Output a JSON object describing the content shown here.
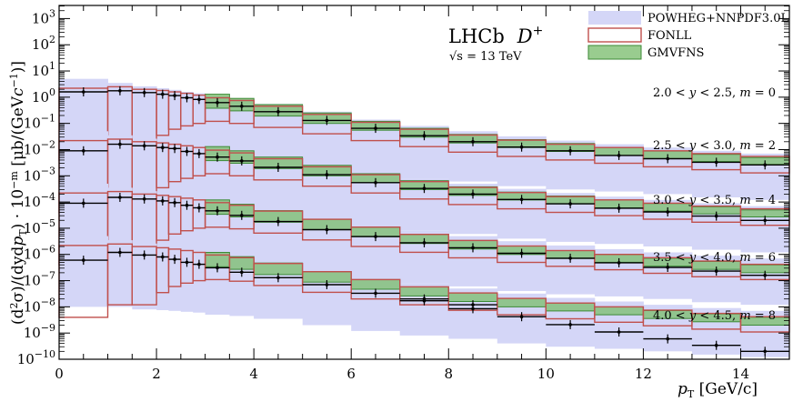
{
  "chart_data": {
    "type": "step-histogram",
    "experiment": "LHCb",
    "particle": "D",
    "particle_charge": "+",
    "energy_label": "√s = 13 TeV",
    "xlabel": "pT [GeV/c]",
    "xlabel_parts": {
      "main": "p",
      "sub": "T",
      "unit": " [GeV/c]"
    },
    "ylabel_parts": {
      "a": "(d",
      "sup2": "2",
      "b": "σ)/(dyd",
      "p": "p",
      "subT": "T",
      "c": ") · 10",
      "supm": "−m",
      "d": " [μb/(GeV",
      "e": "c",
      "supm1": "−1",
      "f": ")]"
    },
    "xlim": [
      0,
      15
    ],
    "ylim_log10": [
      -10,
      3.5
    ],
    "y_scale": "log",
    "xticks": [
      0,
      2,
      4,
      6,
      8,
      10,
      12,
      14
    ],
    "ytick_exponents": [
      3,
      2,
      1,
      0,
      -1,
      -2,
      -3,
      -4,
      -5,
      -6,
      -7,
      -8,
      -9,
      -10
    ],
    "ytick_labels": [
      "10^3",
      "10^2",
      "10^1",
      "10^0",
      "10^−1",
      "10^−2",
      "10^−3",
      "10^−4",
      "10^−5",
      "10^−6",
      "10^−7",
      "10^−8",
      "10^−9",
      "10^−10"
    ],
    "legend": [
      {
        "name": "POWHEG+NNPDF3.0L",
        "color": "#d4d6f7",
        "style": "fill"
      },
      {
        "name": "FONLL",
        "color": "#c0504d",
        "style": "outline"
      },
      {
        "name": "GMVFNS",
        "color": "#7fbf73",
        "style": "fill-outline"
      }
    ],
    "legend_position": "top-right",
    "colors": {
      "powheg": "#d4d6f7",
      "fonll": "#c0504d",
      "gmvfns_fill": "#7fbf73",
      "gmvfns_edge": "#3c8a36",
      "data": "#000000"
    },
    "bin_edges": [
      0,
      1,
      1.5,
      2,
      2.25,
      2.5,
      2.75,
      3,
      3.5,
      4,
      5,
      6,
      7,
      8,
      9,
      10,
      11,
      12,
      13,
      14,
      15
    ],
    "series": [
      {
        "name": "2.0 < y < 2.5, m = 0",
        "label_parts": {
          "a": "2.0 < ",
          "y": "y",
          "b": " < 2.5, ",
          "m": "m",
          "c": " = 0"
        },
        "scale_exp": 0,
        "data": {
          "x": [
            0.5,
            1.25,
            1.75,
            2.125,
            2.375,
            2.625,
            2.875,
            3.25,
            3.75,
            4.5,
            5.5,
            6.5,
            7.5,
            8.5,
            9.5,
            10.5,
            11.5,
            12.5,
            13.5,
            14.5
          ],
          "y": [
            1.6,
            1.75,
            1.5,
            1.3,
            1.15,
            0.95,
            0.82,
            0.62,
            0.45,
            0.28,
            0.13,
            0.065,
            0.034,
            0.02,
            0.0125,
            0.009,
            0.006,
            0.0045,
            0.0033,
            0.0026
          ]
        },
        "powheg": {
          "lo": [
            0.01,
            0.01,
            0.008,
            0.0075,
            0.007,
            0.0065,
            0.006,
            0.005,
            0.0045,
            0.0035,
            0.002,
            0.0012,
            0.0008,
            0.0006,
            0.0004,
            0.0003,
            0.00025,
            0.0002,
            0.00015,
            0.00012
          ],
          "hi": [
            5,
            3.5,
            2.6,
            2.2,
            1.9,
            1.6,
            1.4,
            1.1,
            0.85,
            0.55,
            0.28,
            0.14,
            0.08,
            0.05,
            0.032,
            0.022,
            0.016,
            0.012,
            0.009,
            0.007
          ]
        },
        "fonll": {
          "lo": [
            0.004,
            0.012,
            0.012,
            0.035,
            0.06,
            0.08,
            0.1,
            0.12,
            0.1,
            0.07,
            0.04,
            0.022,
            0.013,
            0.008,
            0.0055,
            0.004,
            0.003,
            0.0022,
            0.0017,
            0.0013
          ],
          "hi": [
            2.2,
            2.5,
            2.0,
            1.8,
            1.6,
            1.4,
            1.2,
            0.95,
            0.75,
            0.45,
            0.22,
            0.11,
            0.06,
            0.036,
            0.023,
            0.016,
            0.012,
            0.009,
            0.007,
            0.0055
          ]
        },
        "gmvfns": {
          "lo": [
            null,
            null,
            null,
            null,
            null,
            null,
            null,
            0.38,
            0.3,
            0.19,
            0.1,
            0.055,
            0.03,
            0.018,
            0.012,
            0.0085,
            0.006,
            0.0045,
            0.0035,
            0.0027
          ],
          "hi": [
            null,
            null,
            null,
            null,
            null,
            null,
            null,
            1.3,
            0.9,
            0.52,
            0.25,
            0.12,
            0.065,
            0.038,
            0.024,
            0.017,
            0.012,
            0.0088,
            0.0066,
            0.005
          ]
        }
      },
      {
        "name": "2.5 < y < 3.0, m = 2",
        "label_parts": {
          "a": "2.5 < ",
          "y": "y",
          "b": " < 3.0, ",
          "m": "m",
          "c": " = 2"
        },
        "scale_exp": -2,
        "data": {
          "x": [
            0.5,
            1.25,
            1.75,
            2.125,
            2.375,
            2.625,
            2.875,
            3.25,
            3.75,
            4.5,
            5.5,
            6.5,
            7.5,
            8.5,
            9.5,
            10.5,
            11.5,
            12.5,
            13.5,
            14.5
          ],
          "y": [
            0.009,
            0.016,
            0.014,
            0.012,
            0.011,
            0.0085,
            0.007,
            0.0052,
            0.0037,
            0.0021,
            0.0011,
            0.00055,
            0.00033,
            0.0002,
            0.000125,
            8.5e-05,
            5.8e-05,
            4.2e-05,
            2.9e-05,
            2e-05
          ]
        },
        "powheg": {
          "lo": [
            0.0001,
            0.0001,
            8e-05,
            7.5e-05,
            7e-05,
            6.5e-05,
            6e-05,
            5e-05,
            4.5e-05,
            3.5e-05,
            2e-05,
            1.2e-05,
            8e-06,
            6e-06,
            4e-06,
            3e-06,
            2.5e-06,
            2e-06,
            1.5e-06,
            1.2e-06
          ],
          "hi": [
            0.05,
            0.035,
            0.026,
            0.022,
            0.019,
            0.016,
            0.014,
            0.011,
            0.0085,
            0.0055,
            0.0028,
            0.0014,
            0.0008,
            0.0005,
            0.00032,
            0.00022,
            0.00016,
            0.00012,
            9e-05,
            7e-05
          ]
        },
        "fonll": {
          "lo": [
            4e-05,
            0.00012,
            0.00012,
            0.00035,
            0.0006,
            0.0008,
            0.001,
            0.0012,
            0.001,
            0.0007,
            0.0004,
            0.00022,
            0.00013,
            8e-05,
            5.5e-05,
            4e-05,
            3e-05,
            2.2e-05,
            1.7e-05,
            1.3e-05
          ],
          "hi": [
            0.022,
            0.025,
            0.02,
            0.018,
            0.016,
            0.014,
            0.012,
            0.0095,
            0.0075,
            0.0045,
            0.0022,
            0.0011,
            0.0006,
            0.00036,
            0.00023,
            0.00016,
            0.00012,
            9e-05,
            7e-05,
            5.5e-05
          ]
        },
        "gmvfns": {
          "lo": [
            null,
            null,
            null,
            null,
            null,
            null,
            null,
            0.0038,
            0.003,
            0.0019,
            0.001,
            0.00055,
            0.0003,
            0.00018,
            0.00012,
            8.5e-05,
            6e-05,
            4.5e-05,
            3.5e-05,
            2.7e-05
          ],
          "hi": [
            null,
            null,
            null,
            null,
            null,
            null,
            null,
            0.013,
            0.009,
            0.0052,
            0.0025,
            0.0012,
            0.00065,
            0.00038,
            0.00024,
            0.00017,
            0.00012,
            8.8e-05,
            6.6e-05,
            5e-05
          ]
        }
      },
      {
        "name": "3.0 < y < 3.5, m = 4",
        "label_parts": {
          "a": "3.0 < ",
          "y": "y",
          "b": " < 3.5, ",
          "m": "m",
          "c": " = 4"
        },
        "scale_exp": -4,
        "data": {
          "x": [
            0.5,
            1.25,
            1.75,
            2.125,
            2.375,
            2.625,
            2.875,
            3.25,
            3.75,
            4.5,
            5.5,
            6.5,
            7.5,
            8.5,
            9.5,
            10.5,
            11.5,
            12.5,
            13.5,
            14.5
          ],
          "y": [
            9e-05,
            0.00015,
            0.00013,
            0.00011,
            9.5e-05,
            7.5e-05,
            6e-05,
            4.6e-05,
            3.1e-05,
            1.8e-05,
            8.8e-06,
            4.8e-06,
            2.8e-06,
            1.8e-06,
            1.1e-06,
            7.2e-07,
            4.8e-07,
            3.2e-07,
            2.3e-07,
            1.6e-07
          ]
        },
        "powheg": {
          "lo": [
            1e-06,
            1e-06,
            8e-07,
            7.5e-07,
            7e-07,
            6.5e-07,
            6e-07,
            5e-07,
            4.5e-07,
            3.5e-07,
            2e-07,
            1.2e-07,
            8e-08,
            6e-08,
            4e-08,
            3e-08,
            2.5e-08,
            2e-08,
            1.5e-08,
            1.2e-08
          ],
          "hi": [
            0.0005,
            0.00035,
            0.00026,
            0.00022,
            0.00019,
            0.00016,
            0.00014,
            0.00011,
            8.5e-05,
            5.5e-05,
            2.8e-05,
            1.4e-05,
            8e-06,
            5e-06,
            3.2e-06,
            2.2e-06,
            1.6e-06,
            1.2e-06,
            9e-07,
            7e-07
          ]
        },
        "fonll": {
          "lo": [
            4e-07,
            1.2e-06,
            1.2e-06,
            3.5e-06,
            6e-06,
            8e-06,
            1e-05,
            1.1e-05,
            9.5e-06,
            6.5e-06,
            3.6e-06,
            2e-06,
            1.2e-06,
            7.4e-07,
            5e-07,
            3.5e-07,
            2.6e-07,
            1.9e-07,
            1.4e-07,
            1.1e-07
          ],
          "hi": [
            0.00022,
            0.00025,
            0.0002,
            0.00018,
            0.00016,
            0.00014,
            0.00012,
            9.5e-05,
            7.5e-05,
            4.5e-05,
            2.2e-05,
            1.1e-05,
            5.8e-06,
            3.4e-06,
            2.1e-06,
            1.4e-06,
            1e-06,
            7.5e-07,
            5.6e-07,
            4.2e-07
          ]
        },
        "gmvfns": {
          "lo": [
            null,
            null,
            null,
            null,
            null,
            null,
            null,
            3.4e-05,
            2.7e-05,
            1.7e-05,
            8.8e-06,
            4.7e-06,
            2.6e-06,
            1.6e-06,
            1e-06,
            7e-07,
            5e-07,
            3.6e-07,
            2.7e-07,
            2e-07
          ],
          "hi": [
            null,
            null,
            null,
            null,
            null,
            null,
            null,
            0.00012,
            8.2e-05,
            4.7e-05,
            2.2e-05,
            1.1e-05,
            5.8e-06,
            3.4e-06,
            2.1e-06,
            1.4e-06,
            1e-06,
            7.2e-07,
            5.4e-07,
            4e-07
          ]
        }
      },
      {
        "name": "3.5 < y < 4.0, m = 6",
        "label_parts": {
          "a": "3.5 < ",
          "y": "y",
          "b": " < 4.0, ",
          "m": "m",
          "c": " = 6"
        },
        "scale_exp": -6,
        "data": {
          "x": [
            0.5,
            1.25,
            1.75,
            2.125,
            2.375,
            2.625,
            2.875,
            3.25,
            3.75,
            4.5,
            5.5,
            6.5,
            7.5,
            8.5,
            9.5,
            10.5,
            11.5,
            12.5,
            13.5,
            14.5
          ],
          "y": [
            6e-07,
            1.2e-06,
            9.5e-07,
            8e-07,
            6.5e-07,
            5e-07,
            4.2e-07,
            3.1e-07,
            2.1e-07,
            1.3e-07,
            7e-08,
            3.3e-08,
            1.7e-08,
            8.5e-09,
            4.2e-09,
            2.1e-09,
            1.1e-09,
            6e-10,
            3.4e-10,
            2e-10
          ]
        },
        "powheg": {
          "lo": [
            1e-08,
            1e-08,
            8e-09,
            7.5e-09,
            7e-09,
            6.5e-09,
            6e-09,
            5e-09,
            4.5e-09,
            3.5e-09,
            2e-09,
            1.2e-09,
            8e-10,
            6e-10,
            4e-10,
            3e-10,
            2.5e-10,
            2e-10,
            1.5e-10,
            1.2e-10
          ],
          "hi": [
            5e-06,
            3.5e-06,
            2.6e-06,
            2.2e-06,
            1.9e-06,
            1.6e-06,
            1.4e-06,
            1.1e-06,
            8.5e-07,
            5.5e-07,
            2.8e-07,
            1.4e-07,
            8e-08,
            5e-08,
            3.2e-08,
            2.2e-08,
            1.6e-08,
            1.2e-08,
            9e-09,
            7e-09
          ]
        },
        "fonll": {
          "lo": [
            4e-09,
            1.2e-08,
            1.2e-08,
            3.5e-08,
            6e-08,
            8e-08,
            1e-07,
            1.1e-07,
            9.5e-08,
            6.5e-08,
            3.6e-08,
            2e-08,
            1.2e-08,
            7.4e-09,
            5e-09,
            3.5e-09,
            2.6e-09,
            1.9e-09,
            1.4e-09,
            1.1e-09
          ],
          "hi": [
            2.2e-06,
            2.5e-06,
            2e-06,
            1.8e-06,
            1.6e-06,
            1.4e-06,
            1.2e-06,
            9.5e-07,
            7.5e-07,
            4.5e-07,
            2.2e-07,
            1.1e-07,
            5.8e-08,
            3.4e-08,
            2.1e-08,
            1.4e-08,
            1e-08,
            7.5e-09,
            5.6e-09,
            4.2e-09
          ]
        },
        "gmvfns": {
          "lo": [
            null,
            null,
            null,
            null,
            null,
            null,
            null,
            3.4e-07,
            2.7e-07,
            1.7e-07,
            8.8e-08,
            4.7e-08,
            2.6e-08,
            1.6e-08,
            1e-08,
            7e-09,
            5e-09,
            3.6e-09,
            2.7e-09,
            2e-09
          ],
          "hi": [
            null,
            null,
            null,
            null,
            null,
            null,
            null,
            1.2e-06,
            8.2e-07,
            4.7e-07,
            2.2e-07,
            1.1e-07,
            5.8e-08,
            3.4e-08,
            2.1e-08,
            1.4e-08,
            1e-08,
            7.2e-09,
            5.4e-09,
            4e-09
          ]
        }
      },
      {
        "name": "4.0 < y < 4.5, m = 8",
        "label_parts": {
          "a": "4.0 < ",
          "y": "y",
          "b": " < 4.5, ",
          "m": "m",
          "c": " = 8"
        },
        "scale_exp": -8,
        "data": {
          "x": [
            7.5,
            8.5
          ],
          "y": [
            2e-08,
            1.2e-08
          ]
        },
        "powheg": {
          "lo": [],
          "hi": []
        },
        "fonll": {
          "lo": [],
          "hi": []
        },
        "gmvfns": {
          "lo": [],
          "hi": []
        }
      }
    ]
  }
}
